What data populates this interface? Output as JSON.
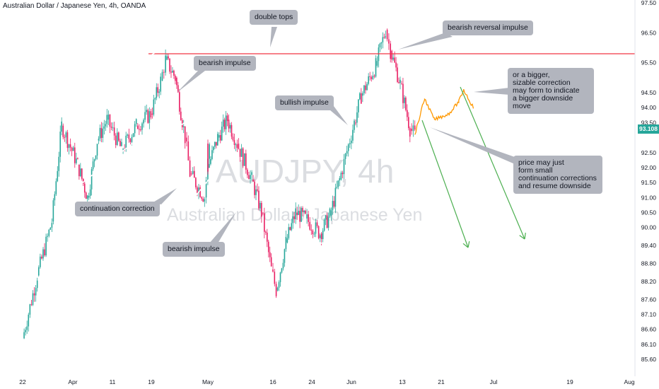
{
  "header": {
    "title": "Australian Dollar / Japanese Yen, 4h, OANDA"
  },
  "watermark": {
    "symbol": "AUDJPY, 4h",
    "name": "Australian Dollar / Japanese Yen"
  },
  "colors": {
    "up": "#26a69a",
    "down": "#e91e63",
    "level": "#f23645",
    "projection": "#ff9800",
    "arrow": "#4caf50",
    "callout_bg": "#b2b5be",
    "price_tag": "#26a69a"
  },
  "chart_data": {
    "type": "candlestick",
    "title": "Australian Dollar / Japanese Yen, 4h, OANDA",
    "ylim": [
      85.3,
      97.7
    ],
    "y_ticks": [
      "97.50",
      "96.50",
      "95.50",
      "94.50",
      "94.00",
      "93.50",
      "92.50",
      "92.00",
      "91.50",
      "91.00",
      "90.50",
      "90.00",
      "89.40",
      "88.80",
      "88.20",
      "87.60",
      "87.10",
      "86.60",
      "86.10",
      "85.60"
    ],
    "x_ticks": [
      "22",
      "Apr",
      "11",
      "19",
      "May",
      "16",
      "24",
      "Jun",
      "13",
      "21",
      "Jul",
      "19",
      "Aug"
    ],
    "last_price": "93.108",
    "key_level": 95.8,
    "path_points": [
      {
        "x": "22",
        "y": 86.3
      },
      {
        "x": "Mar 25",
        "y": 88.4
      },
      {
        "x": "Mar 28",
        "y": 90.2
      },
      {
        "x": "Mar 30",
        "y": 93.4
      },
      {
        "x": "Apr 02",
        "y": 92.1
      },
      {
        "x": "Apr 04",
        "y": 91.0
      },
      {
        "x": "Apr 06",
        "y": 92.9
      },
      {
        "x": "Apr 08",
        "y": 93.6
      },
      {
        "x": "Apr 11",
        "y": 92.6
      },
      {
        "x": "Apr 14",
        "y": 93.4
      },
      {
        "x": "Apr 17",
        "y": 93.8
      },
      {
        "x": "Apr 19",
        "y": 94.9
      },
      {
        "x": "Apr 20",
        "y": 95.6
      },
      {
        "x": "Apr 22",
        "y": 95.0
      },
      {
        "x": "Apr 24",
        "y": 93.0
      },
      {
        "x": "Apr 25",
        "y": 91.8
      },
      {
        "x": "Apr 28",
        "y": 91.0
      },
      {
        "x": "Apr 29",
        "y": 92.8
      },
      {
        "x": "May 01",
        "y": 92.0
      },
      {
        "x": "May 03",
        "y": 93.0
      },
      {
        "x": "May 05",
        "y": 93.6
      },
      {
        "x": "May 07",
        "y": 92.8
      },
      {
        "x": "May 10",
        "y": 91.6
      },
      {
        "x": "May 12",
        "y": 90.5
      },
      {
        "x": "May 14",
        "y": 88.6
      },
      {
        "x": "May 15",
        "y": 87.9
      },
      {
        "x": "May 17",
        "y": 89.5
      },
      {
        "x": "May 19",
        "y": 90.5
      },
      {
        "x": "May 21",
        "y": 90.3
      },
      {
        "x": "May 24",
        "y": 89.8
      },
      {
        "x": "May 26",
        "y": 90.4
      },
      {
        "x": "May 28",
        "y": 91.6
      },
      {
        "x": "May 31",
        "y": 93.5
      },
      {
        "x": "Jun 03",
        "y": 94.4
      },
      {
        "x": "Jun 06",
        "y": 95.4
      },
      {
        "x": "Jun 08",
        "y": 96.6
      },
      {
        "x": "Jun 09",
        "y": 95.9
      },
      {
        "x": "Jun 11",
        "y": 94.8
      },
      {
        "x": "Jun 13",
        "y": 93.3
      },
      {
        "x": "Jun 14",
        "y": 93.1
      }
    ],
    "projection": [
      {
        "x": "Jun 14",
        "y": 93.1
      },
      {
        "x": "Jun 16",
        "y": 94.3
      },
      {
        "x": "Jun 18",
        "y": 93.6
      },
      {
        "x": "Jun 21",
        "y": 93.8
      },
      {
        "x": "Jun 23",
        "y": 94.2
      },
      {
        "x": "Jun 24",
        "y": 94.6
      },
      {
        "x": "Jun 26",
        "y": 94.0
      }
    ],
    "annotations": [
      {
        "id": "double-tops",
        "text": "double tops"
      },
      {
        "id": "bearish-reversal",
        "text": "bearish reversal impulse"
      },
      {
        "id": "bearish-impulse-1",
        "text": "bearish impulse"
      },
      {
        "id": "bullish-impulse",
        "text": "bullish impulse"
      },
      {
        "id": "continuation-correction",
        "text": "continuation correction"
      },
      {
        "id": "bearish-impulse-2",
        "text": "bearish impulse"
      },
      {
        "id": "bigger-correction",
        "text": "or a bigger,\nsizable correction\nmay form to indicate\na bigger downside move"
      },
      {
        "id": "small-corrections",
        "text": "price may just\nform small\ncontinuation corrections\nand resume downside"
      }
    ]
  }
}
